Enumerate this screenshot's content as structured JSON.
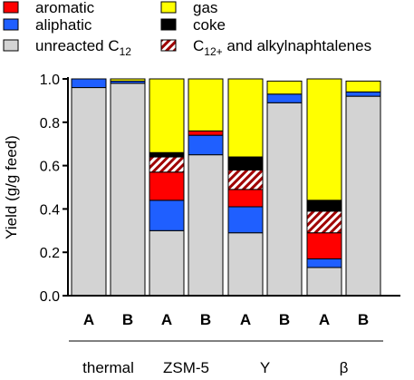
{
  "chart_data": {
    "type": "bar",
    "stacked": true,
    "ylabel": "Yield (g/g feed)",
    "ylim": [
      0,
      1.0
    ],
    "yticks": [
      "0.0",
      "0.2",
      "0.4",
      "0.6",
      "0.8",
      "1.0"
    ],
    "ytick_values": [
      0.0,
      0.2,
      0.4,
      0.6,
      0.8,
      1.0
    ],
    "categories": [
      "A",
      "B",
      "A",
      "B",
      "A",
      "B",
      "A",
      "B"
    ],
    "groups": [
      {
        "label": "thermal",
        "bars": [
          0,
          1
        ]
      },
      {
        "label": "ZSM-5",
        "bars": [
          2,
          3
        ]
      },
      {
        "label": "Y",
        "bars": [
          4,
          5
        ]
      },
      {
        "label": "β",
        "bars": [
          6,
          7
        ]
      }
    ],
    "series": [
      {
        "name": "unreacted C",
        "subscript": "12",
        "color": "#d3d3d3",
        "pattern": "solid",
        "values": [
          0.96,
          0.98,
          0.3,
          0.65,
          0.29,
          0.89,
          0.13,
          0.92
        ]
      },
      {
        "name": "aliphatic",
        "color": "#1f5fff",
        "pattern": "solid",
        "values": [
          0.04,
          0.01,
          0.14,
          0.09,
          0.12,
          0.04,
          0.04,
          0.02
        ]
      },
      {
        "name": "aromatic",
        "color": "#ff0000",
        "pattern": "solid",
        "values": [
          0.0,
          0.0,
          0.13,
          0.02,
          0.08,
          0.0,
          0.12,
          0.0
        ]
      },
      {
        "name": "C",
        "subscript": "12+",
        "name_suffix": " and alkylnaphtalenes",
        "color": "#a00000",
        "pattern": "hatch",
        "values": [
          0.0,
          0.0,
          0.07,
          0.0,
          0.09,
          0.0,
          0.1,
          0.0
        ]
      },
      {
        "name": "coke",
        "color": "#000000",
        "pattern": "solid",
        "values": [
          0.0,
          0.0,
          0.02,
          0.0,
          0.06,
          0.0,
          0.05,
          0.0
        ]
      },
      {
        "name": "gas",
        "color": "#ffff00",
        "pattern": "solid",
        "values": [
          0.0,
          0.01,
          0.34,
          0.24,
          0.36,
          0.06,
          0.56,
          0.05
        ]
      }
    ],
    "legend": {
      "placement": "top",
      "items": [
        {
          "series": 2
        },
        {
          "series": 5
        },
        {
          "series": 1
        },
        {
          "series": 4
        },
        {
          "series": 0
        },
        {
          "series": 3
        }
      ]
    },
    "grid": false
  }
}
